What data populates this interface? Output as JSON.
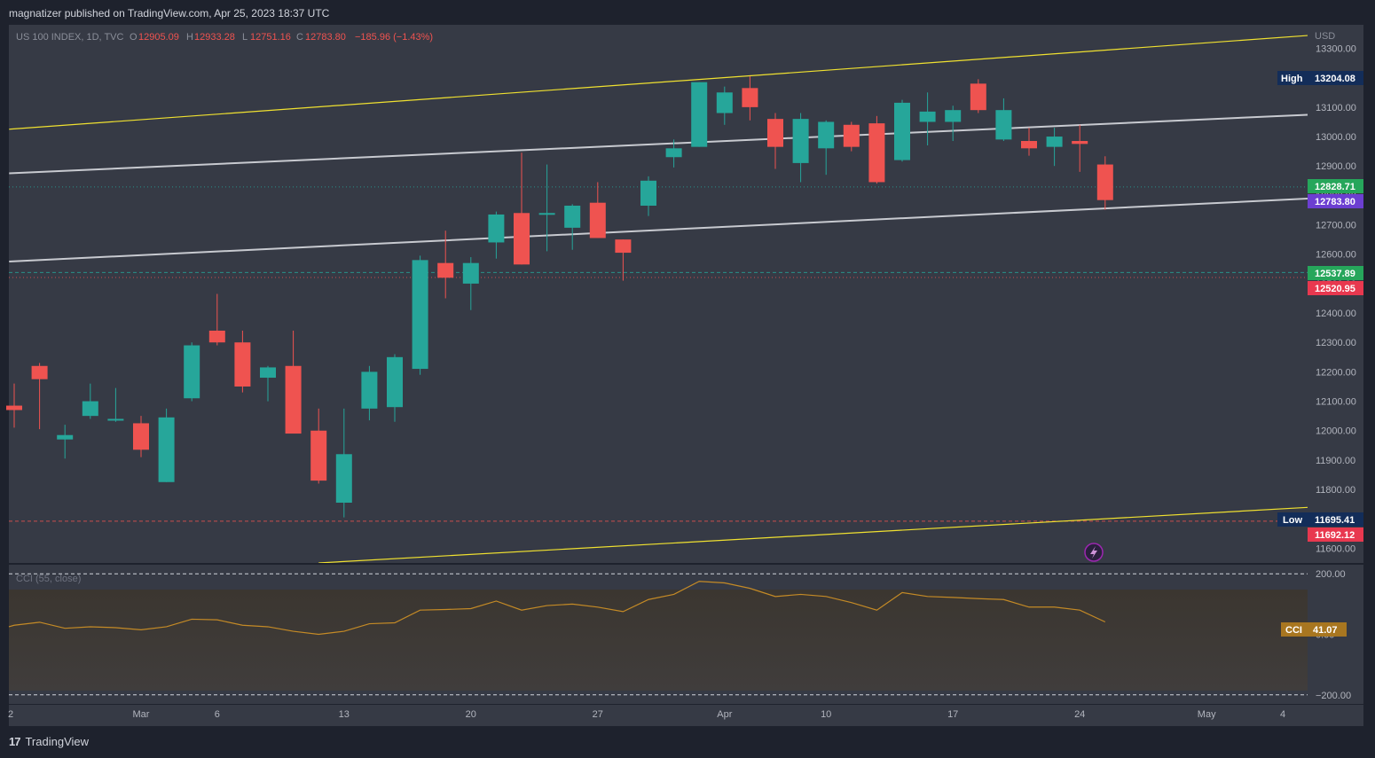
{
  "header": {
    "published_text": "magnatizer published on TradingView.com, Apr 25, 2023 18:37 UTC"
  },
  "legend": {
    "symbol": "US 100 INDEX, 1D, TVC",
    "open_label": "O",
    "open": "12905.09",
    "high_label": "H",
    "high": "12933.28",
    "low_label": "L",
    "low": "12751.16",
    "close_label": "C",
    "close": "12783.80",
    "change": "−185.96 (−1.43%)"
  },
  "currency": "USD",
  "footer": {
    "brand": "TradingView",
    "logo_text": "17"
  },
  "colors": {
    "up": "#26a69a",
    "down": "#ef5350",
    "channel_outer": "#f0e130",
    "channel_inner": "#c8cad0",
    "cci_line": "#c48a26",
    "background": "#1e222d",
    "pane": "#363a45"
  },
  "badges": {
    "high_label": "High",
    "high_value": "13204.08",
    "low_label": "Low",
    "low_value": "11695.41",
    "last_price": "12828.71",
    "close_price": "12783.80",
    "green_level": "12537.89",
    "red_level": "12520.95",
    "low_red": "11692.12",
    "cci_label": "CCI",
    "cci_value": "41.07"
  },
  "chart_data": [
    {
      "type": "candlestick",
      "title": "US 100 INDEX, 1D, TVC",
      "ylabel": "USD",
      "ylim": [
        11550,
        13380
      ],
      "y_ticks": [
        11600,
        11700,
        11800,
        11900,
        12000,
        12100,
        12200,
        12300,
        12400,
        12500,
        12600,
        12700,
        12800,
        12900,
        13000,
        13100,
        13200,
        13300
      ],
      "y_tick_labels": [
        "11600.00",
        "11700.00",
        "11800.00",
        "11900.00",
        "12000.00",
        "12100.00",
        "12200.00",
        "12300.00",
        "12400.00",
        "12500.00",
        "12600.00",
        "12700.00",
        "12800.00",
        "12900.00",
        "13000.00",
        "13100.00",
        "13200.00",
        "13300.00"
      ],
      "x_tick_labels": [
        {
          "label": "2",
          "bar": 0
        },
        {
          "label": "Mar",
          "bar": 5
        },
        {
          "label": "6",
          "bar": 8
        },
        {
          "label": "13",
          "bar": 13
        },
        {
          "label": "20",
          "bar": 18
        },
        {
          "label": "27",
          "bar": 23
        },
        {
          "label": "Apr",
          "bar": 28
        },
        {
          "label": "10",
          "bar": 32
        },
        {
          "label": "17",
          "bar": 37
        },
        {
          "label": "24",
          "bar": 42
        },
        {
          "label": "May",
          "bar": 47
        },
        {
          "label": "4",
          "bar": 50
        }
      ],
      "bars": [
        {
          "o": 12085,
          "h": 12160,
          "l": 12010,
          "c": 12070
        },
        {
          "o": 12220,
          "h": 12230,
          "l": 12005,
          "c": 12175
        },
        {
          "o": 11970,
          "h": 12020,
          "l": 11905,
          "c": 11985
        },
        {
          "o": 12050,
          "h": 12160,
          "l": 12040,
          "c": 12100
        },
        {
          "o": 12040,
          "h": 12145,
          "l": 12030,
          "c": 12040
        },
        {
          "o": 12025,
          "h": 12050,
          "l": 11910,
          "c": 11935
        },
        {
          "o": 11825,
          "h": 12075,
          "l": 11825,
          "c": 12045
        },
        {
          "o": 12110,
          "h": 12300,
          "l": 12100,
          "c": 12290
        },
        {
          "o": 12340,
          "h": 12465,
          "l": 12290,
          "c": 12300
        },
        {
          "o": 12300,
          "h": 12340,
          "l": 12130,
          "c": 12150
        },
        {
          "o": 12180,
          "h": 12220,
          "l": 12100,
          "c": 12215
        },
        {
          "o": 12220,
          "h": 12340,
          "l": 11995,
          "c": 11990
        },
        {
          "o": 12000,
          "h": 12075,
          "l": 11820,
          "c": 11830
        },
        {
          "o": 11755,
          "h": 12075,
          "l": 11705,
          "c": 11920
        },
        {
          "o": 12075,
          "h": 12220,
          "l": 12035,
          "c": 12200
        },
        {
          "o": 12080,
          "h": 12260,
          "l": 12030,
          "c": 12250
        },
        {
          "o": 12210,
          "h": 12595,
          "l": 12190,
          "c": 12580
        },
        {
          "o": 12570,
          "h": 12680,
          "l": 12450,
          "c": 12520
        },
        {
          "o": 12500,
          "h": 12590,
          "l": 12410,
          "c": 12570
        },
        {
          "o": 12640,
          "h": 12745,
          "l": 12585,
          "c": 12735
        },
        {
          "o": 12740,
          "h": 12945,
          "l": 12565,
          "c": 12565
        },
        {
          "o": 12735,
          "h": 12905,
          "l": 12610,
          "c": 12740
        },
        {
          "o": 12690,
          "h": 12770,
          "l": 12615,
          "c": 12765
        },
        {
          "o": 12775,
          "h": 12845,
          "l": 12655,
          "c": 12655
        },
        {
          "o": 12650,
          "h": 12650,
          "l": 12510,
          "c": 12605
        },
        {
          "o": 12765,
          "h": 12865,
          "l": 12730,
          "c": 12850
        },
        {
          "o": 12930,
          "h": 12990,
          "l": 12895,
          "c": 12960
        },
        {
          "o": 12965,
          "h": 13185,
          "l": 12965,
          "c": 13185
        },
        {
          "o": 13080,
          "h": 13170,
          "l": 13040,
          "c": 13150
        },
        {
          "o": 13165,
          "h": 13205,
          "l": 13055,
          "c": 13100
        },
        {
          "o": 13060,
          "h": 13080,
          "l": 12890,
          "c": 12965
        },
        {
          "o": 12910,
          "h": 13080,
          "l": 12845,
          "c": 13060
        },
        {
          "o": 12960,
          "h": 13055,
          "l": 12870,
          "c": 13050
        },
        {
          "o": 13040,
          "h": 13050,
          "l": 12950,
          "c": 12965
        },
        {
          "o": 13045,
          "h": 13070,
          "l": 12840,
          "c": 12845
        },
        {
          "o": 12920,
          "h": 13125,
          "l": 12915,
          "c": 13115
        },
        {
          "o": 13050,
          "h": 13150,
          "l": 12970,
          "c": 13085
        },
        {
          "o": 13050,
          "h": 13105,
          "l": 12985,
          "c": 13090
        },
        {
          "o": 13180,
          "h": 13195,
          "l": 13080,
          "c": 13090
        },
        {
          "o": 12990,
          "h": 13130,
          "l": 12985,
          "c": 13090
        },
        {
          "o": 12985,
          "h": 13030,
          "l": 12935,
          "c": 12960
        },
        {
          "o": 12965,
          "h": 13030,
          "l": 12900,
          "c": 13000
        },
        {
          "o": 12985,
          "h": 13040,
          "l": 12880,
          "c": 12975
        },
        {
          "o": 12905,
          "h": 12933,
          "l": 12751,
          "c": 12784
        }
      ],
      "levels": [
        {
          "value": 12828.71,
          "style": "dotted",
          "color": "#26a69a"
        },
        {
          "value": 12537.89,
          "style": "dashed",
          "color": "#26a69a"
        },
        {
          "value": 12520.95,
          "style": "dotted",
          "color": "#ef5350"
        },
        {
          "value": 11692.12,
          "style": "dashed",
          "color": "#ef5350"
        }
      ],
      "trendlines": [
        {
          "name": "",
          "color": "#f0e130",
          "x0": -0.2,
          "y0": 13025,
          "x1": 51.2,
          "y1": 13345
        },
        {
          "name": "",
          "color": "#c8cad0",
          "x0": -0.2,
          "y0": 12875,
          "x1": 51.2,
          "y1": 13075
        },
        {
          "name": "",
          "color": "#c8cad0",
          "x0": -0.2,
          "y0": 12575,
          "x1": 51.2,
          "y1": 12790
        },
        {
          "name": "",
          "color": "#f0e130",
          "x0": 12,
          "y0": 11550,
          "x1": 51.2,
          "y1": 11740
        }
      ]
    },
    {
      "type": "line",
      "title": "CCI (55, close)",
      "ylim": [
        -230,
        230
      ],
      "y_ticks": [
        200,
        0,
        -200
      ],
      "y_tick_labels": [
        "200.00",
        "0.00",
        "−200.00"
      ],
      "reference_lines": [
        200,
        -200
      ],
      "series": [
        {
          "name": "CCI",
          "values": [
            30,
            40,
            20,
            25,
            22,
            15,
            25,
            50,
            48,
            30,
            25,
            10,
            0,
            10,
            35,
            38,
            80,
            82,
            85,
            110,
            80,
            95,
            100,
            90,
            75,
            115,
            132,
            175,
            170,
            152,
            125,
            132,
            125,
            105,
            80,
            138,
            125,
            122,
            118,
            115,
            90,
            90,
            80,
            41
          ]
        }
      ]
    }
  ]
}
